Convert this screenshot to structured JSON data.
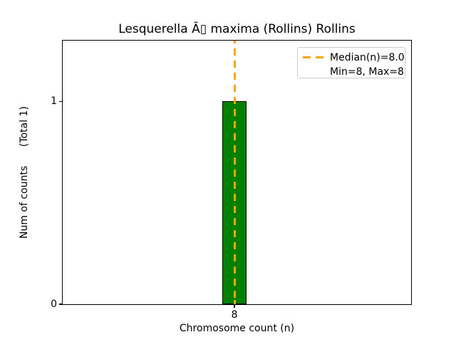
{
  "figure": {
    "title": "Lesquerella Ã▯ maxima (Rollins) Rollins",
    "xlabel": "Chromosome count (n)",
    "ylabel": "Num of counts      (Total 1)",
    "ticks": {
      "x": [
        "8"
      ],
      "y": [
        "1",
        "0"
      ]
    },
    "legend": {
      "median_label": "Median(n)=8.0",
      "minmax_label": "Min=8, Max=8"
    },
    "colors": {
      "bar_fill": "#008000",
      "bar_edge": "#000000",
      "median_line": "#FFA500",
      "axes_edge": "#000000",
      "legend_border": "#cccccc",
      "background": "#ffffff",
      "text": "#000000"
    }
  },
  "chart_data": {
    "type": "bar",
    "title": "Lesquerella Ã▯ maxima (Rollins) Rollins",
    "xlabel": "Chromosome count (n)",
    "ylabel": "Num of counts (Total 1)",
    "categories": [
      8
    ],
    "values": [
      1
    ],
    "total_counts": 1,
    "xticks": [
      8
    ],
    "yticks": [
      0,
      1
    ],
    "ylim": [
      0,
      1.3
    ],
    "bar_color": "#008000",
    "bar_edgecolor": "#000000",
    "grid": false,
    "annotations": [
      {
        "type": "vline",
        "x": 8,
        "style": "dashed",
        "color": "#FFA500",
        "label": "Median(n)=8.0"
      }
    ],
    "legend": {
      "position": "upper right",
      "entries": [
        "Median(n)=8.0",
        "Min=8, Max=8"
      ]
    }
  }
}
